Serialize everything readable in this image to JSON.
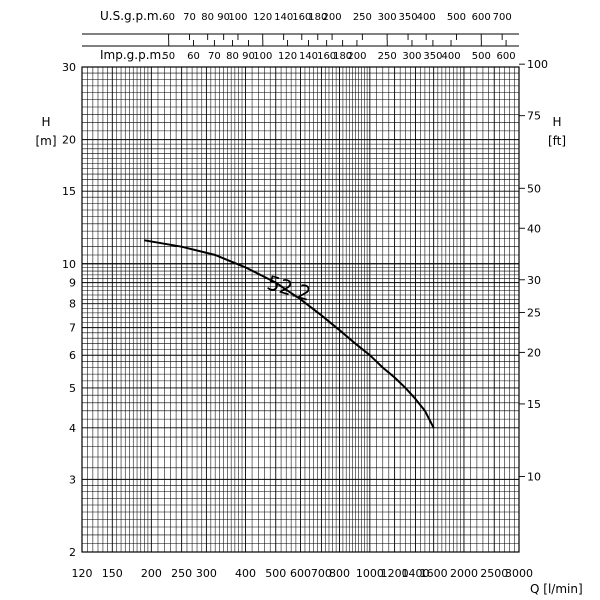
{
  "chart_data": {
    "type": "line",
    "title": "",
    "x_axis": {
      "label": "Q [l/min]",
      "scale": "log",
      "range": [
        120,
        3000
      ],
      "tick_labels": [
        "120",
        "150",
        "200",
        "250",
        "300",
        "400",
        "500",
        "600",
        "700",
        "800",
        "1000",
        "1200",
        "1400",
        "1600",
        "2000",
        "2500",
        "3000"
      ]
    },
    "top_axes": [
      {
        "label": "U.S.g.p.m.",
        "scale": "log",
        "tick_labels": [
          "60",
          "70",
          "80",
          "90",
          "100",
          "120",
          "140",
          "160",
          "180",
          "200",
          "250",
          "300",
          "350",
          "400",
          "500",
          "600",
          "700"
        ]
      },
      {
        "label": "Imp.g.p.m.",
        "scale": "log",
        "tick_labels": [
          "50",
          "60",
          "70",
          "80",
          "90",
          "100",
          "120",
          "140",
          "160",
          "180",
          "200",
          "250",
          "300",
          "350",
          "400",
          "500",
          "600"
        ]
      }
    ],
    "y_axis_left": {
      "label_top": "H",
      "label_bottom": "[m]",
      "scale": "log",
      "range": [
        2,
        30
      ],
      "tick_labels": [
        "2",
        "3",
        "4",
        "5",
        "6",
        "7",
        "8",
        "9",
        "10",
        "15",
        "20",
        "30"
      ]
    },
    "y_axis_right": {
      "label_top": "H",
      "label_bottom": "[ft]",
      "scale": "log",
      "tick_labels": [
        "10",
        "15",
        "20",
        "25",
        "30",
        "40",
        "50",
        "75",
        "100"
      ]
    },
    "grid": true,
    "series": [
      {
        "name": "52.2",
        "x": [
          190,
          250,
          320,
          400,
          500,
          600,
          700,
          800,
          900,
          1000,
          1100,
          1200,
          1300,
          1400,
          1500,
          1600
        ],
        "y": [
          11.4,
          11.0,
          10.5,
          9.8,
          9.0,
          8.2,
          7.5,
          6.9,
          6.4,
          6.0,
          5.6,
          5.3,
          5.0,
          4.7,
          4.4,
          4.0
        ]
      }
    ]
  }
}
